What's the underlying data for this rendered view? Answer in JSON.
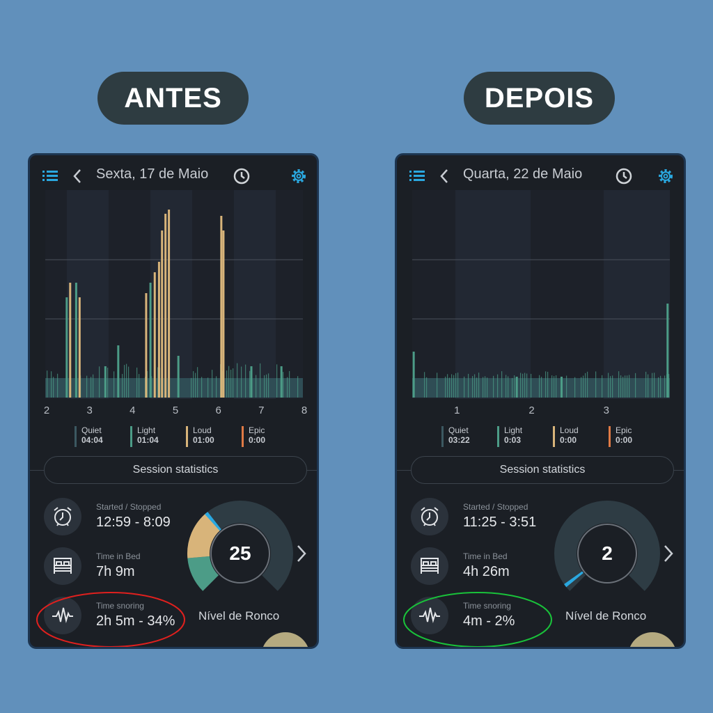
{
  "labels": {
    "before": "ANTES",
    "after": "DEPOIS"
  },
  "colors": {
    "background": "#6190bb",
    "quiet": "#3c5861",
    "light": "#4c9c87",
    "loud": "#d8b47a",
    "epic": "#e07a45",
    "accent": "#2aa8e0",
    "before_circle": "#e0201e",
    "after_circle": "#19c23a"
  },
  "panels": [
    {
      "title": "Sexta, 17 de Maio",
      "icons": [
        "menu-icon",
        "back-chevron-icon",
        "history-icon",
        "gear-icon"
      ],
      "x_ticks": [
        "2",
        "3",
        "4",
        "5",
        "6",
        "7",
        "8"
      ],
      "legend": [
        {
          "name": "Quiet",
          "value": "04:04"
        },
        {
          "name": "Light",
          "value": "01:04"
        },
        {
          "name": "Loud",
          "value": "01:00"
        },
        {
          "name": "Epic",
          "value": "0:00"
        }
      ],
      "session_button": "Session statistics",
      "started_label": "Started / Stopped",
      "started_value": "12:59 - 8:09",
      "bed_label": "Time in Bed",
      "bed_value": "7h 9m",
      "snore_label": "Time snoring",
      "snore_value": "2h 5m - 34%",
      "score": "25",
      "score_label": "Nível de Ronco",
      "chart_data": {
        "type": "bar",
        "x_range": [
          2,
          8
        ],
        "spikes": [
          [
            2.5,
            0.48,
            "light"
          ],
          [
            2.58,
            0.55,
            "loud"
          ],
          [
            2.72,
            0.55,
            "light"
          ],
          [
            2.8,
            0.48,
            "loud"
          ],
          [
            3.4,
            0.15,
            "light"
          ],
          [
            3.7,
            0.25,
            "light"
          ],
          [
            4.35,
            0.5,
            "loud"
          ],
          [
            4.45,
            0.55,
            "light"
          ],
          [
            4.55,
            0.6,
            "loud"
          ],
          [
            4.65,
            0.65,
            "loud"
          ],
          [
            4.72,
            0.8,
            "loud"
          ],
          [
            4.8,
            0.88,
            "loud"
          ],
          [
            4.88,
            0.9,
            "loud"
          ],
          [
            5.1,
            0.2,
            "light"
          ],
          [
            6.1,
            0.87,
            "loud"
          ],
          [
            6.15,
            0.8,
            "loud"
          ],
          [
            6.8,
            0.15,
            "light"
          ],
          [
            7.5,
            0.15,
            "light"
          ]
        ]
      }
    },
    {
      "title": "Quarta, 22 de Maio",
      "icons": [
        "menu-icon",
        "back-chevron-icon",
        "history-icon",
        "gear-icon"
      ],
      "x_ticks": [
        "1",
        "2",
        "3"
      ],
      "legend": [
        {
          "name": "Quiet",
          "value": "03:22"
        },
        {
          "name": "Light",
          "value": "0:03"
        },
        {
          "name": "Loud",
          "value": "0:00"
        },
        {
          "name": "Epic",
          "value": "0:00"
        }
      ],
      "session_button": "Session statistics",
      "started_label": "Started / Stopped",
      "started_value": "11:25 - 3:51",
      "bed_label": "Time in Bed",
      "bed_value": "4h 26m",
      "snore_label": "Time snoring",
      "snore_value": "4m - 2%",
      "score": "2",
      "score_label": "Nível de Ronco",
      "chart_data": {
        "type": "bar",
        "x_range": [
          0.4,
          3.85
        ],
        "spikes": [
          [
            0.42,
            0.22,
            "light"
          ],
          [
            3.82,
            0.45,
            "light"
          ],
          [
            1.8,
            0.1,
            "light"
          ],
          [
            2.4,
            0.1,
            "light"
          ]
        ]
      }
    }
  ]
}
